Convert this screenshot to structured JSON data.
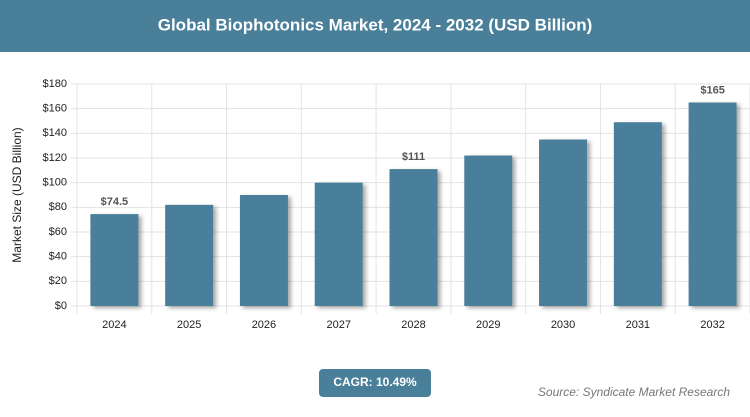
{
  "chart_data": {
    "type": "bar",
    "title": "Global Biophotonics Market, 2024 - 2032 (USD Billion)",
    "y_label": "Market Size (USD Billion)",
    "categories": [
      "2024",
      "2025",
      "2026",
      "2027",
      "2028",
      "2029",
      "2030",
      "2031",
      "2032"
    ],
    "values": [
      74.5,
      82,
      90,
      100,
      111,
      122,
      135,
      149,
      165
    ],
    "value_labels": [
      "$74.5",
      null,
      null,
      null,
      "$111",
      null,
      null,
      null,
      "$165"
    ],
    "color": "#4a7f9a",
    "ylim": [
      0,
      180
    ],
    "yticks": [
      {
        "value": 0,
        "label": "$0"
      },
      {
        "value": 20,
        "label": "$20"
      },
      {
        "value": 40,
        "label": "$40"
      },
      {
        "value": 60,
        "label": "$60"
      },
      {
        "value": 80,
        "label": "$80"
      },
      {
        "value": 100,
        "label": "$100"
      },
      {
        "value": 120,
        "label": "$120"
      },
      {
        "value": 140,
        "label": "$140"
      },
      {
        "value": 160,
        "label": "$160"
      },
      {
        "value": 180,
        "label": "$180"
      }
    ],
    "grid": true,
    "cagr": "CAGR: 10.49%",
    "source": "Source: Syndicate Market Research"
  }
}
